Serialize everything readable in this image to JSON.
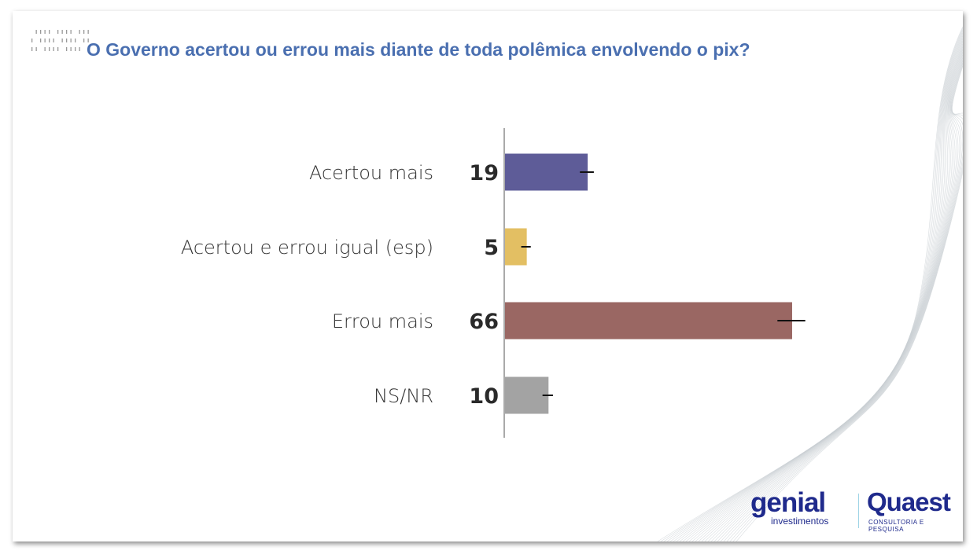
{
  "chart_data": {
    "type": "bar",
    "orientation": "horizontal",
    "title": "O Governo acertou ou errou mais diante de toda polêmica envolvendo o pix?",
    "categories": [
      "Acertou mais",
      "Acertou e errou igual (esp)",
      "Errou mais",
      "NS/NR"
    ],
    "values": [
      19,
      5,
      66,
      10
    ],
    "value_labels": [
      "19",
      "5",
      "66",
      "10"
    ],
    "error_margin": [
      1.6,
      1.1,
      3.2,
      1.2
    ],
    "colors": [
      "#5e5c98",
      "#e3bf63",
      "#9a6763",
      "#a3a3a3"
    ],
    "xlim": [
      0,
      100
    ],
    "grid": false,
    "legend": "none"
  },
  "branding": {
    "genial": "genial",
    "genial_sub": "investimentos",
    "quaest": "Quaest",
    "quaest_sub": "CONSULTORIA E PESQUISA"
  }
}
